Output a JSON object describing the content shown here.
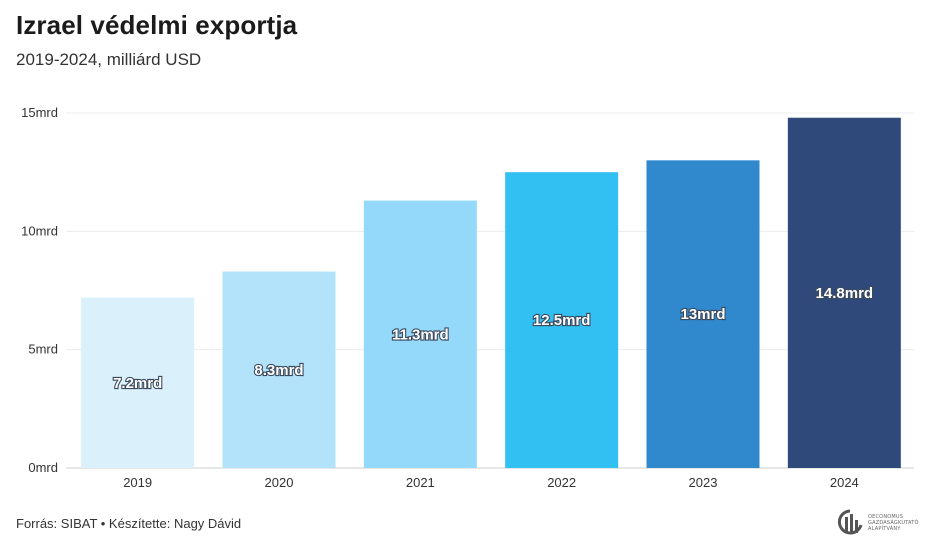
{
  "title": "Izrael védelmi exportja",
  "subtitle": "2019-2024, milliárd USD",
  "footer": "Forrás: SIBAT • Készítette: Nagy Dávid",
  "logo": {
    "icon": "oeconomus-logo-icon",
    "text": [
      "OECONOMUS",
      "GAZDASÁGKUTATÓ",
      "ALAPÍTVÁNY"
    ]
  },
  "chart_data": {
    "type": "bar",
    "categories": [
      "2019",
      "2020",
      "2021",
      "2022",
      "2023",
      "2024"
    ],
    "values": [
      7.2,
      8.3,
      11.3,
      12.5,
      13,
      14.8
    ],
    "data_labels": [
      "7.2mrd",
      "8.3mrd",
      "11.3mrd",
      "12.5mrd",
      "13mrd",
      "14.8mrd"
    ],
    "colors": [
      "#daf1fc",
      "#b3e3fb",
      "#94d8fa",
      "#32c0f2",
      "#2f89cc",
      "#2f4a7a"
    ],
    "yticks": [
      0,
      5,
      10,
      15
    ],
    "ytick_labels": [
      "0mrd",
      "5mrd",
      "10mrd",
      "15mrd"
    ],
    "ylim": [
      0,
      15
    ],
    "grid": true,
    "title": "Izrael védelmi exportja",
    "xlabel": "",
    "ylabel": ""
  }
}
